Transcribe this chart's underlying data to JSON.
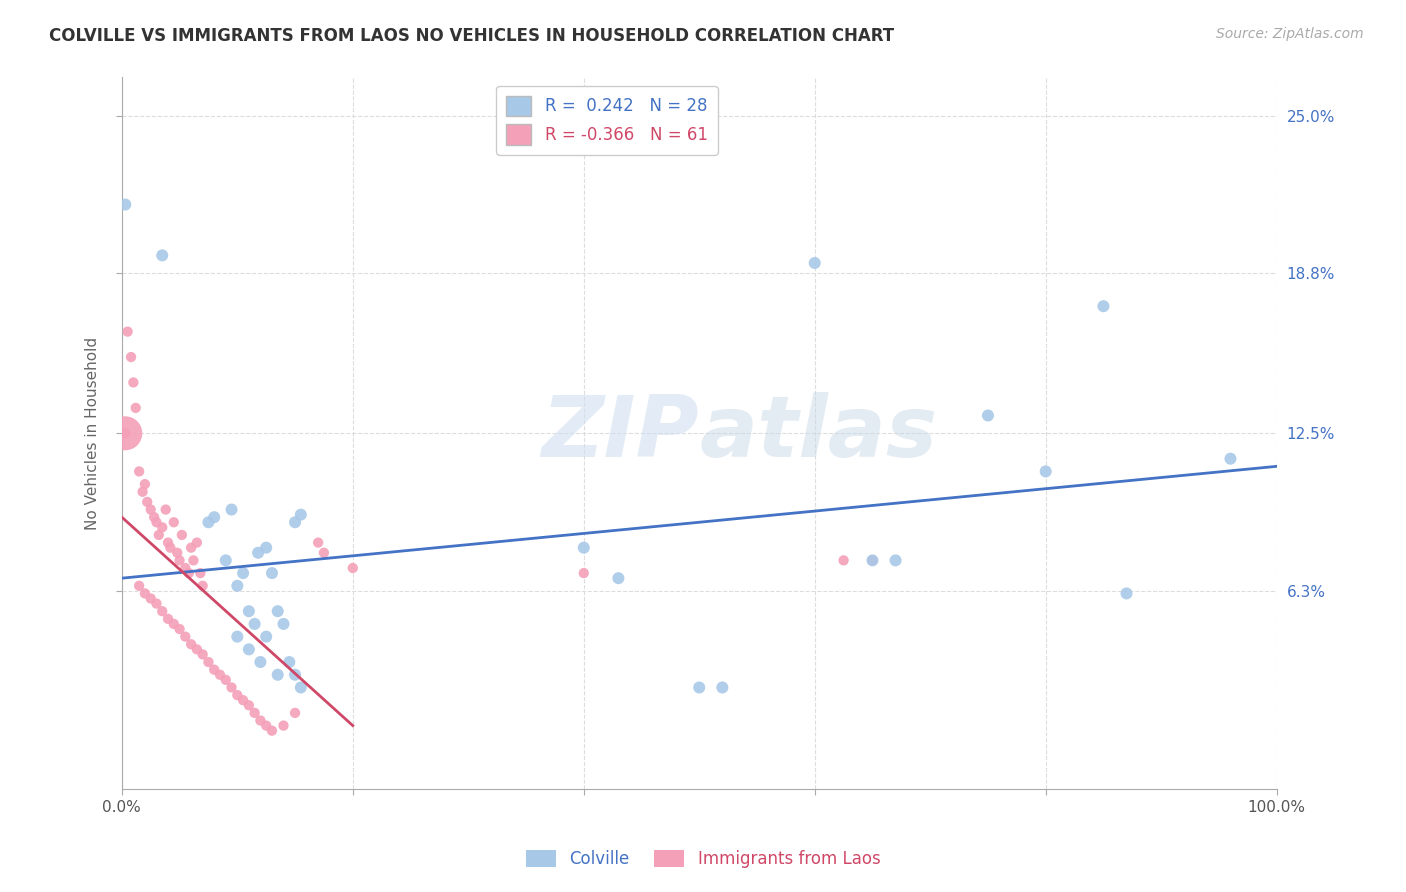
{
  "title": "COLVILLE VS IMMIGRANTS FROM LAOS NO VEHICLES IN HOUSEHOLD CORRELATION CHART",
  "source": "Source: ZipAtlas.com",
  "ylabel": "No Vehicles in Household",
  "ytick_labels": [
    "6.3%",
    "12.5%",
    "18.8%",
    "25.0%"
  ],
  "ytick_values": [
    6.3,
    12.5,
    18.8,
    25.0
  ],
  "xlim": [
    0,
    100
  ],
  "ylim": [
    -1.5,
    26.5
  ],
  "colville_color": "#a8c8e8",
  "laos_color": "#f4a0b8",
  "colville_line_color": "#4472c4",
  "laos_line_color": "#d04868",
  "colville_points": [
    [
      0.3,
      21.5
    ],
    [
      3.5,
      19.5
    ],
    [
      7.5,
      9.0
    ],
    [
      8.0,
      9.2
    ],
    [
      9.0,
      7.5
    ],
    [
      9.5,
      9.5
    ],
    [
      10.0,
      6.5
    ],
    [
      10.5,
      7.0
    ],
    [
      11.0,
      5.5
    ],
    [
      11.5,
      5.0
    ],
    [
      11.8,
      7.8
    ],
    [
      12.5,
      8.0
    ],
    [
      13.0,
      7.0
    ],
    [
      13.5,
      5.5
    ],
    [
      14.0,
      5.0
    ],
    [
      15.0,
      9.0
    ],
    [
      15.5,
      9.3
    ],
    [
      10.0,
      4.5
    ],
    [
      11.0,
      4.0
    ],
    [
      12.0,
      3.5
    ],
    [
      12.5,
      4.5
    ],
    [
      13.5,
      3.0
    ],
    [
      14.5,
      3.5
    ],
    [
      15.0,
      3.0
    ],
    [
      15.5,
      2.5
    ],
    [
      40.0,
      8.0
    ],
    [
      43.0,
      6.8
    ],
    [
      60.0,
      19.2
    ],
    [
      65.0,
      7.5
    ],
    [
      67.0,
      7.5
    ],
    [
      75.0,
      13.2
    ],
    [
      80.0,
      11.0
    ],
    [
      85.0,
      17.5
    ],
    [
      87.0,
      6.2
    ],
    [
      96.0,
      11.5
    ],
    [
      50.0,
      2.5
    ],
    [
      52.0,
      2.5
    ]
  ],
  "laos_points": [
    [
      0.5,
      16.5
    ],
    [
      0.8,
      15.5
    ],
    [
      1.0,
      14.5
    ],
    [
      1.2,
      13.5
    ],
    [
      0.3,
      12.5
    ],
    [
      1.5,
      11.0
    ],
    [
      1.8,
      10.2
    ],
    [
      2.0,
      10.5
    ],
    [
      2.2,
      9.8
    ],
    [
      2.5,
      9.5
    ],
    [
      2.8,
      9.2
    ],
    [
      3.0,
      9.0
    ],
    [
      3.2,
      8.5
    ],
    [
      3.5,
      8.8
    ],
    [
      3.8,
      9.5
    ],
    [
      4.0,
      8.2
    ],
    [
      4.2,
      8.0
    ],
    [
      4.5,
      9.0
    ],
    [
      4.8,
      7.8
    ],
    [
      5.0,
      7.5
    ],
    [
      5.2,
      8.5
    ],
    [
      5.5,
      7.2
    ],
    [
      5.8,
      7.0
    ],
    [
      6.0,
      8.0
    ],
    [
      6.2,
      7.5
    ],
    [
      6.5,
      8.2
    ],
    [
      6.8,
      7.0
    ],
    [
      7.0,
      6.5
    ],
    [
      1.5,
      6.5
    ],
    [
      2.0,
      6.2
    ],
    [
      2.5,
      6.0
    ],
    [
      3.0,
      5.8
    ],
    [
      3.5,
      5.5
    ],
    [
      4.0,
      5.2
    ],
    [
      4.5,
      5.0
    ],
    [
      5.0,
      4.8
    ],
    [
      5.5,
      4.5
    ],
    [
      6.0,
      4.2
    ],
    [
      6.5,
      4.0
    ],
    [
      7.0,
      3.8
    ],
    [
      7.5,
      3.5
    ],
    [
      8.0,
      3.2
    ],
    [
      8.5,
      3.0
    ],
    [
      9.0,
      2.8
    ],
    [
      9.5,
      2.5
    ],
    [
      10.0,
      2.2
    ],
    [
      10.5,
      2.0
    ],
    [
      11.0,
      1.8
    ],
    [
      11.5,
      1.5
    ],
    [
      12.0,
      1.2
    ],
    [
      12.5,
      1.0
    ],
    [
      13.0,
      0.8
    ],
    [
      14.0,
      1.0
    ],
    [
      15.0,
      1.5
    ],
    [
      17.0,
      8.2
    ],
    [
      17.5,
      7.8
    ],
    [
      20.0,
      7.2
    ],
    [
      40.0,
      7.0
    ],
    [
      62.5,
      7.5
    ],
    [
      65.0,
      7.5
    ]
  ],
  "laos_big_dot": [
    0.3,
    12.5
  ],
  "laos_big_dot_size": 600,
  "colville_trendline_x": [
    0,
    100
  ],
  "colville_trendline_y": [
    6.8,
    11.2
  ],
  "laos_trendline_x": [
    0,
    20
  ],
  "laos_trendline_y": [
    9.2,
    1.0
  ],
  "background_color": "#ffffff",
  "grid_color": "#dddddd",
  "watermark": "ZIPatlas",
  "colville_marker_size": 75,
  "laos_marker_size": 55
}
